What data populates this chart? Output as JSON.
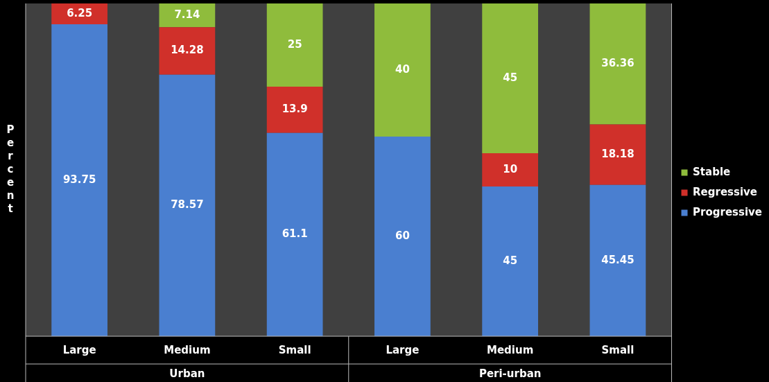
{
  "chart_data": {
    "type": "bar",
    "stacked": true,
    "ylabel": "Percent",
    "categories": [
      "Large",
      "Medium",
      "Small",
      "Large",
      "Medium",
      "Small"
    ],
    "annotations": [
      "Urban",
      "Peri-urban"
    ],
    "series": [
      {
        "name": "Progressive",
        "color": "#4a7fd0",
        "values": [
          93.75,
          78.57,
          61.1,
          60,
          45,
          45.45
        ]
      },
      {
        "name": "Regressive",
        "color": "#d0302a",
        "values": [
          6.25,
          14.28,
          13.9,
          null,
          10,
          18.18
        ]
      },
      {
        "name": "Stable",
        "color": "#8fbc3c",
        "values": [
          null,
          7.14,
          25,
          40,
          45,
          36.36
        ]
      }
    ],
    "ylim": [
      0,
      100
    ],
    "data_labels": true,
    "legend": "right",
    "tick_labels": "x",
    "grid": false
  }
}
